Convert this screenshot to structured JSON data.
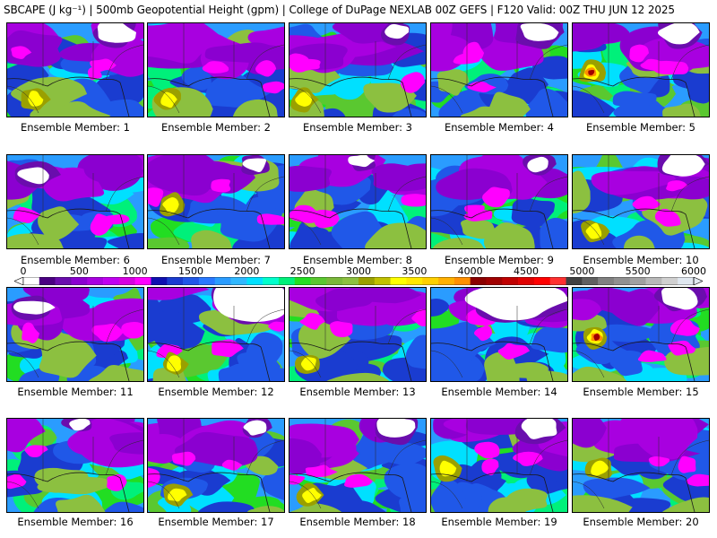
{
  "title": "SBCAPE (J kg⁻¹) | 500mb Geopotential Height (gpm) | College of DuPage NEXLAB 00Z GEFS | F120 Valid: 00Z THU JUN 12 2025",
  "member_label_prefix": "Ensemble Member:",
  "members": [
    {
      "label": "Ensemble Member: 1",
      "high_cape": "low",
      "white": "ne"
    },
    {
      "label": "Ensemble Member: 2",
      "high_cape": "low",
      "white": "none"
    },
    {
      "label": "Ensemble Member: 3",
      "high_cape": "low",
      "white": "ne-small"
    },
    {
      "label": "Ensemble Member: 4",
      "high_cape": "none",
      "white": "ne"
    },
    {
      "label": "Ensemble Member: 5",
      "high_cape": "high",
      "white": "ne"
    },
    {
      "label": "Ensemble Member: 6",
      "high_cape": "none",
      "white": "nw"
    },
    {
      "label": "Ensemble Member: 7",
      "high_cape": "mid",
      "white": "ne-small"
    },
    {
      "label": "Ensemble Member: 8",
      "high_cape": "none",
      "white": "n-small"
    },
    {
      "label": "Ensemble Member: 9",
      "high_cape": "none",
      "white": "ne-small"
    },
    {
      "label": "Ensemble Member: 10",
      "high_cape": "low",
      "white": "ne"
    },
    {
      "label": "Ensemble Member: 11",
      "high_cape": "none",
      "white": "nw"
    },
    {
      "label": "Ensemble Member: 12",
      "high_cape": "low",
      "white": "ne-large"
    },
    {
      "label": "Ensemble Member: 13",
      "high_cape": "low",
      "white": "none"
    },
    {
      "label": "Ensemble Member: 14",
      "high_cape": "none",
      "white": "n-large"
    },
    {
      "label": "Ensemble Member: 15",
      "high_cape": "high",
      "white": "ne"
    },
    {
      "label": "Ensemble Member: 16",
      "high_cape": "none",
      "white": "n-small"
    },
    {
      "label": "Ensemble Member: 17",
      "high_cape": "low",
      "white": "ne-small"
    },
    {
      "label": "Ensemble Member: 18",
      "high_cape": "low",
      "white": "ne"
    },
    {
      "label": "Ensemble Member: 19",
      "high_cape": "mid",
      "white": "ne"
    },
    {
      "label": "Ensemble Member: 20",
      "high_cape": "mid",
      "white": "none"
    }
  ],
  "colorbar": {
    "ticks": [
      "0",
      "500",
      "1000",
      "1500",
      "2000",
      "2500",
      "3000",
      "3500",
      "4000",
      "4500",
      "5000",
      "5500",
      "6000"
    ],
    "colors": [
      "#ffffff",
      "#4b0082",
      "#6a0dad",
      "#8b00d0",
      "#a800e0",
      "#c000f0",
      "#d600e0",
      "#ff00ff",
      "#1010b0",
      "#1a3cd0",
      "#2058e8",
      "#2878ff",
      "#2a9cff",
      "#30b8ff",
      "#00e0ff",
      "#00ffcc",
      "#00f07a",
      "#22dd22",
      "#5ac830",
      "#7ab83a",
      "#8cc040",
      "#9aa000",
      "#c0c000",
      "#ffff00",
      "#ffe800",
      "#ffd000",
      "#ffb000",
      "#ff9000",
      "#8b0000",
      "#a00000",
      "#c00000",
      "#e00000",
      "#ff0000",
      "#ff3030",
      "#404040",
      "#606060",
      "#808080",
      "#909090",
      "#a0a0a0",
      "#b8b8b8",
      "#d0d0d0",
      "#e0e8f0"
    ]
  }
}
